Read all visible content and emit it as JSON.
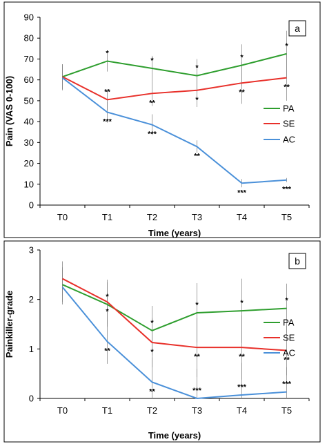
{
  "chart_data": [
    {
      "type": "line",
      "panel_label": "a",
      "categories": [
        "T0",
        "T1",
        "T2",
        "T3",
        "T4",
        "T5"
      ],
      "ylabel": "Pain (VAS 0-100)",
      "xlabel": "Time (years)",
      "ylim": [
        0,
        90
      ],
      "yticks": [
        0,
        10,
        20,
        30,
        40,
        50,
        60,
        70,
        80,
        90
      ],
      "grid": false,
      "legend_position": "right",
      "series": [
        {
          "name": "PA",
          "color": "#2e9e2e",
          "values": [
            61.5,
            69,
            65.5,
            62,
            67,
            72.5
          ],
          "err": [
            6,
            5,
            6,
            8,
            10,
            11
          ],
          "annotations": [
            [
              "*",
              "above"
            ],
            [
              "*",
              "above"
            ],
            [
              "*",
              "above"
            ],
            [
              "*",
              "above"
            ],
            [
              "*",
              "above"
            ]
          ]
        },
        {
          "name": "SE",
          "color": "#e8302a",
          "values": [
            61.5,
            50.5,
            53.5,
            55,
            58.5,
            61
          ],
          "err": [
            6,
            5,
            6,
            8,
            10,
            11
          ],
          "annotations": [
            [
              "**",
              "above"
            ],
            [
              "**",
              "below"
            ],
            [
              "*",
              "below"
            ],
            [
              "**",
              "below"
            ],
            [
              "**",
              "below"
            ]
          ]
        },
        {
          "name": "AC",
          "color": "#4a90d9",
          "values": [
            61,
            44.5,
            38.5,
            28,
            10.5,
            12
          ],
          "err": [
            6,
            5,
            5,
            3,
            2,
            1
          ],
          "annotations": [
            [
              "***",
              "below"
            ],
            [
              "***",
              "below"
            ],
            [
              "**",
              "below"
            ],
            [
              "***",
              "below"
            ],
            [
              "***",
              "below"
            ]
          ]
        }
      ]
    },
    {
      "type": "line",
      "panel_label": "b",
      "categories": [
        "T0",
        "T1",
        "T2",
        "T3",
        "T4",
        "T5"
      ],
      "ylabel": "Painkiller-grade",
      "xlabel": "Time (years)",
      "ylim": [
        0,
        3
      ],
      "yticks": [
        0,
        1,
        2,
        3
      ],
      "grid": false,
      "legend_position": "right",
      "series": [
        {
          "name": "PA",
          "color": "#2e9e2e",
          "values": [
            2.3,
            1.9,
            1.37,
            1.73,
            1.77,
            1.82
          ],
          "err": [
            0.35,
            0.45,
            0.5,
            0.6,
            0.65,
            0.5
          ],
          "annotations": [
            [
              "*",
              "above"
            ],
            [
              "*",
              "above"
            ],
            [
              "*",
              "above"
            ],
            [
              "*",
              "above"
            ],
            [
              "*",
              "above"
            ]
          ]
        },
        {
          "name": "SE",
          "color": "#e8302a",
          "values": [
            2.42,
            1.95,
            1.13,
            1.03,
            1.03,
            0.97
          ],
          "err": [
            0.35,
            0.45,
            0.5,
            0.6,
            0.65,
            0.5
          ],
          "annotations": [
            [
              "*",
              "below"
            ],
            [
              "*",
              "below"
            ],
            [
              "**",
              "below"
            ],
            [
              "**",
              "below"
            ],
            [
              "**",
              "below"
            ]
          ]
        },
        {
          "name": "AC",
          "color": "#4a90d9",
          "values": [
            2.25,
            1.15,
            0.33,
            0.0,
            0.07,
            0.13
          ],
          "err": [
            0.35,
            0.45,
            0.5,
            0.6,
            0.65,
            0.5
          ],
          "annotations": [
            [
              "**",
              "below"
            ],
            [
              "**",
              "below"
            ],
            [
              "***",
              "above"
            ],
            [
              "***",
              "above"
            ],
            [
              "***",
              "above"
            ]
          ]
        }
      ]
    }
  ]
}
